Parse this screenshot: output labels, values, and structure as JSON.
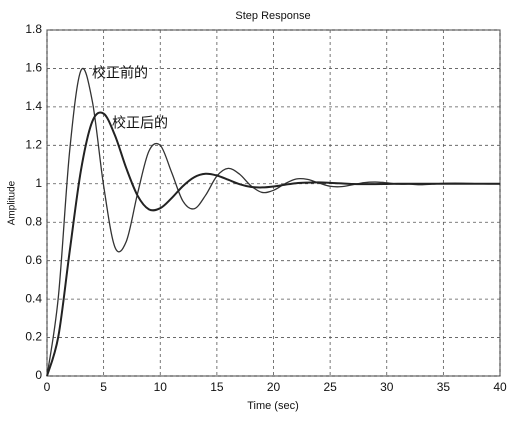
{
  "chart_data": {
    "type": "line",
    "title": "Step Response",
    "x_label": "Time (sec)",
    "y_label": "Amplitude",
    "x": [
      0,
      1,
      2,
      3,
      4,
      5,
      6,
      7,
      8,
      9,
      10,
      11,
      12,
      13,
      14,
      15,
      16,
      17,
      18,
      19,
      20,
      21,
      22,
      23,
      24,
      25,
      26,
      27,
      28,
      29,
      30,
      31,
      32,
      33,
      34,
      35,
      36,
      37,
      38,
      39,
      40
    ],
    "series": [
      {
        "name": "校正前的",
        "color": "#333333",
        "values": [
          0,
          0.41,
          1.17,
          1.59,
          1.43,
          0.99,
          0.67,
          0.7,
          0.95,
          1.17,
          1.2,
          1.06,
          0.91,
          0.87,
          0.94,
          1.04,
          1.08,
          1.05,
          0.99,
          0.955,
          0.966,
          1.0,
          1.025,
          1.023,
          1.004,
          0.987,
          0.985,
          0.995,
          1.006,
          1.009,
          1.005,
          0.998,
          0.998,
          0.995,
          0.998,
          1.002,
          1.003,
          1.002,
          1.0,
          0.999,
          0.999
        ]
      },
      {
        "name": "校正后的",
        "color": "#222222",
        "values": [
          0,
          0.205,
          0.647,
          1.071,
          1.324,
          1.365,
          1.252,
          1.081,
          0.938,
          0.867,
          0.873,
          0.925,
          0.988,
          1.034,
          1.052,
          1.043,
          1.021,
          0.998,
          0.984,
          0.981,
          0.986,
          0.995,
          1.003,
          1.006,
          1.007,
          1.005,
          1.002,
          0.999,
          0.998,
          0.998,
          0.999,
          1.0,
          1.0,
          1.0,
          1.0,
          1.0,
          1.0,
          1.0,
          1.0,
          1.0,
          1.0
        ]
      }
    ],
    "xlim": [
      0,
      40
    ],
    "xticks": [
      0,
      5,
      10,
      15,
      20,
      25,
      30,
      35,
      40
    ],
    "ylim": [
      0,
      1.8
    ],
    "yticks": [
      0,
      0.2,
      0.4,
      0.6,
      0.8,
      1,
      1.2,
      1.4,
      1.6,
      1.8
    ],
    "grid": true
  }
}
